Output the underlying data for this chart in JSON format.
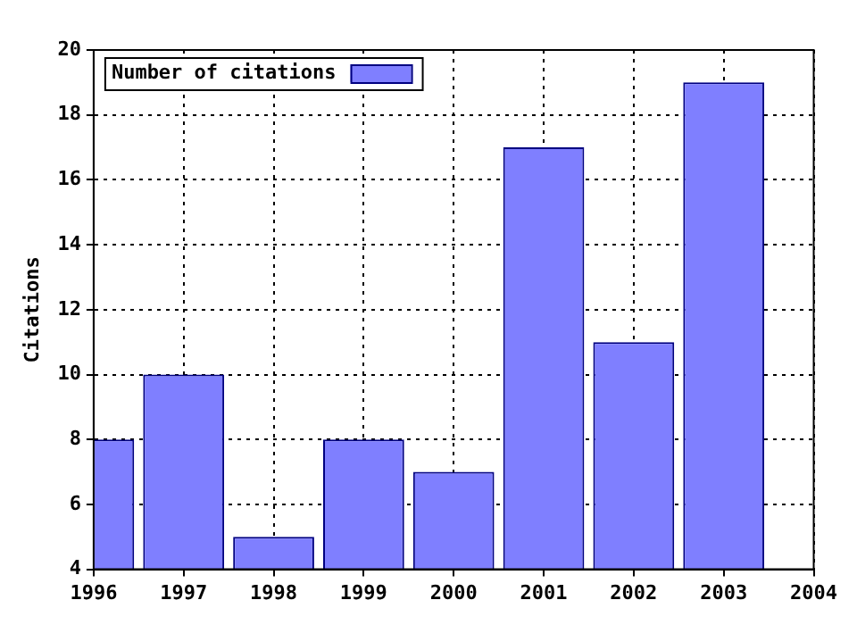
{
  "chart_data": {
    "type": "bar",
    "ylabel": "Citations",
    "x": [
      1996,
      1997,
      1998,
      1999,
      2000,
      2001,
      2002,
      2003
    ],
    "series": [
      {
        "name": "Number of citations",
        "color": "#7f7fff",
        "values": [
          8,
          10,
          5,
          8,
          7,
          17,
          11,
          19
        ]
      }
    ],
    "xlim": [
      1996,
      2004
    ],
    "xticks": [
      1996,
      1997,
      1998,
      1999,
      2000,
      2001,
      2002,
      2003,
      2004
    ],
    "ylim": [
      4,
      20
    ],
    "yticks": [
      4,
      6,
      8,
      10,
      12,
      14,
      16,
      18,
      20
    ],
    "grid": true,
    "legend": "top left"
  }
}
